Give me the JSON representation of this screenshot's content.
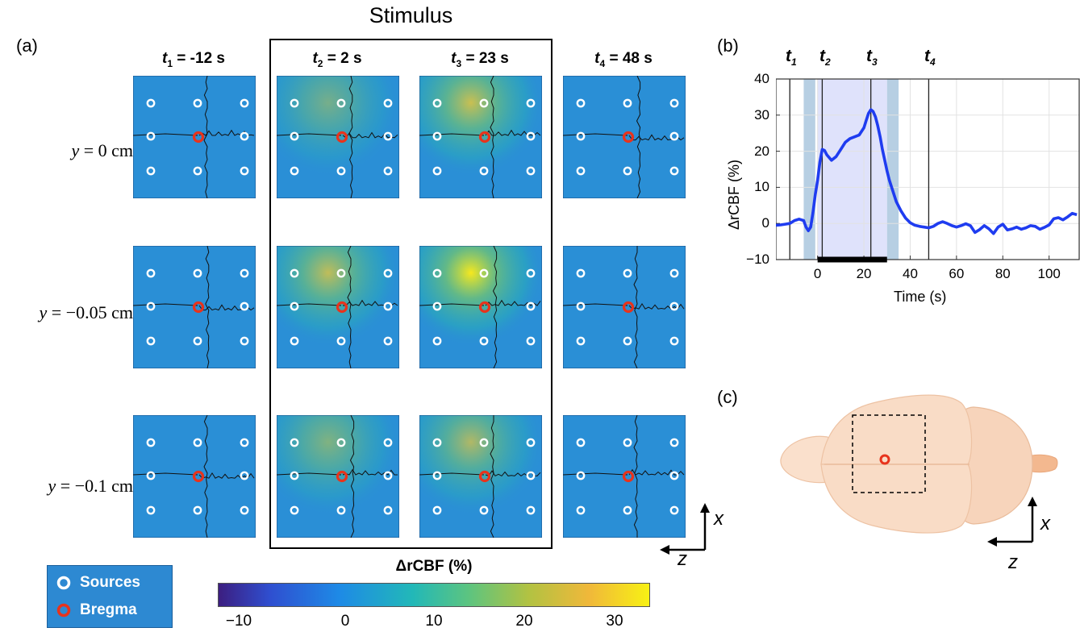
{
  "panel_labels": {
    "a": "(a)",
    "b": "(b)",
    "c": "(c)"
  },
  "stimulus_title": "Stimulus",
  "columns": [
    {
      "var": "t",
      "sub": "1",
      "val": "= -12 s"
    },
    {
      "var": "t",
      "sub": "2",
      "val": "= 2 s"
    },
    {
      "var": "t",
      "sub": "3",
      "val": "= 23 s"
    },
    {
      "var": "t",
      "sub": "4",
      "val": "= 48 s"
    }
  ],
  "rows": [
    {
      "var": "y",
      "val": " = 0 cm"
    },
    {
      "var": "y",
      "val": " = −0.05 cm"
    },
    {
      "var": "y",
      "val": " = −0.1 cm"
    }
  ],
  "hotspots": [
    [
      0.0,
      0.55,
      0.85,
      0.0
    ],
    [
      0.0,
      0.8,
      1.0,
      0.0
    ],
    [
      0.0,
      0.62,
      0.72,
      0.0
    ]
  ],
  "colorbar": {
    "title": "ΔrCBF (%)",
    "ticks": [
      "−10",
      "0",
      "10",
      "20",
      "30"
    ],
    "range": [
      -13,
      35
    ]
  },
  "legend": {
    "sources": "Sources",
    "bregma": "Bregma"
  },
  "axes_labels": {
    "x": "x",
    "z": "z"
  },
  "chart_data": {
    "type": "line",
    "title": "",
    "xlabel": "Time (s)",
    "ylabel": "ΔrCBF (%)",
    "xlim": [
      -18,
      113
    ],
    "ylim": [
      -10,
      40
    ],
    "xticks": [
      "0",
      "20",
      "40",
      "60",
      "80",
      "100"
    ],
    "yticks": [
      "−10",
      "0",
      "10",
      "20",
      "30",
      "40"
    ],
    "grid": true,
    "stimulus_period": [
      0,
      30
    ],
    "markers": [
      {
        "label": "t",
        "sub": "1",
        "x": -12
      },
      {
        "label": "t",
        "sub": "2",
        "x": 2
      },
      {
        "label": "t",
        "sub": "3",
        "x": 23
      },
      {
        "label": "t",
        "sub": "4",
        "x": 48
      }
    ],
    "series": [
      {
        "color": "#1f3cf0",
        "x": [
          -18,
          -16,
          -14,
          -12,
          -10,
          -8,
          -6,
          -5,
          -4,
          -3,
          -2,
          -1,
          0,
          1,
          2,
          3,
          4,
          6,
          8,
          10,
          12,
          14,
          16,
          18,
          20,
          21,
          22,
          23,
          24,
          25,
          26,
          27,
          28,
          29,
          30,
          31,
          32,
          34,
          36,
          38,
          40,
          42,
          44,
          46,
          48,
          50,
          52,
          54,
          56,
          58,
          60,
          62,
          64,
          66,
          68,
          70,
          72,
          74,
          76,
          78,
          80,
          82,
          84,
          86,
          88,
          90,
          92,
          94,
          96,
          98,
          100,
          102,
          104,
          106,
          108,
          110,
          112
        ],
        "y": [
          -0.5,
          -0.4,
          -0.2,
          0.0,
          0.8,
          1.2,
          0.8,
          -1.0,
          -2.0,
          -1.0,
          3.0,
          8.0,
          12.0,
          17.0,
          20.5,
          20.2,
          19.0,
          17.5,
          18.5,
          20.5,
          22.5,
          23.5,
          24.0,
          24.5,
          26.5,
          28.5,
          30.5,
          31.5,
          31.0,
          29.5,
          27.0,
          24.0,
          20.5,
          17.5,
          14.5,
          12.0,
          10.0,
          6.0,
          3.5,
          1.5,
          0.2,
          -0.5,
          -0.8,
          -1.0,
          -1.2,
          -0.8,
          0.0,
          0.5,
          0.0,
          -0.6,
          -1.0,
          -0.6,
          -0.1,
          -0.6,
          -2.5,
          -1.7,
          -0.6,
          -1.5,
          -2.8,
          -1.0,
          -0.2,
          -1.8,
          -1.5,
          -1.0,
          -1.6,
          -1.2,
          -0.6,
          -0.8,
          -1.6,
          -1.1,
          -0.4,
          1.3,
          1.6,
          1.0,
          1.8,
          2.8,
          2.4
        ]
      }
    ]
  }
}
